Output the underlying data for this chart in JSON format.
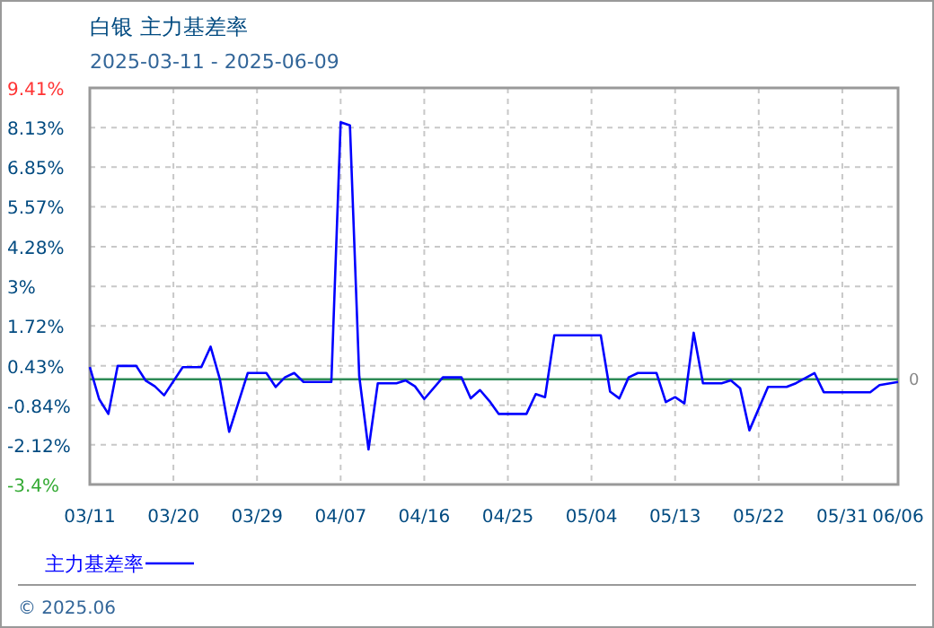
{
  "chart_data": {
    "type": "line",
    "title": "白银 主力基差率",
    "subtitle": "2025-03-11 - 2025-06-09",
    "annotations": [
      "© 2025.06"
    ],
    "x": [
      "2025-03-11",
      "2025-03-12",
      "2025-03-13",
      "2025-03-14",
      "2025-03-16",
      "2025-03-17",
      "2025-03-18",
      "2025-03-19",
      "2025-03-21",
      "2025-03-23",
      "2025-03-24",
      "2025-03-25",
      "2025-03-26",
      "2025-03-28",
      "2025-03-30",
      "2025-03-31",
      "2025-04-01",
      "2025-04-02",
      "2025-04-03",
      "2025-04-06",
      "2025-04-07",
      "2025-04-08",
      "2025-04-09",
      "2025-04-10",
      "2025-04-11",
      "2025-04-13",
      "2025-04-14",
      "2025-04-15",
      "2025-04-16",
      "2025-04-18",
      "2025-04-20",
      "2025-04-21",
      "2025-04-22",
      "2025-04-23",
      "2025-04-24",
      "2025-04-27",
      "2025-04-28",
      "2025-04-29",
      "2025-04-30",
      "2025-05-05",
      "2025-05-06",
      "2025-05-07",
      "2025-05-08",
      "2025-05-09",
      "2025-05-11",
      "2025-05-12",
      "2025-05-13",
      "2025-05-14",
      "2025-05-15",
      "2025-05-16",
      "2025-05-18",
      "2025-05-19",
      "2025-05-20",
      "2025-05-21",
      "2025-05-23",
      "2025-05-25",
      "2025-05-26",
      "2025-05-28",
      "2025-05-29",
      "2025-06-03",
      "2025-06-04",
      "2025-06-06"
    ],
    "series": [
      {
        "name": "主力基差率",
        "color": "#0000ff",
        "values": [
          0.39,
          -0.64,
          -1.12,
          0.43,
          0.43,
          -0.04,
          -0.23,
          -0.52,
          0.39,
          0.39,
          1.05,
          0,
          -1.7,
          0.2,
          0.2,
          -0.25,
          0.06,
          0.2,
          -0.09,
          -0.09,
          8.3,
          8.2,
          0.1,
          -2.27,
          -0.13,
          -0.13,
          -0.04,
          -0.23,
          -0.64,
          0.06,
          0.06,
          -0.62,
          -0.35,
          -0.7,
          -1.12,
          -1.12,
          -0.48,
          -0.58,
          1.42,
          1.42,
          -0.4,
          -0.62,
          0.06,
          0.2,
          0.2,
          -0.74,
          -0.58,
          -0.78,
          1.5,
          -0.13,
          -0.13,
          -0.04,
          -0.29,
          -1.65,
          -0.25,
          -0.25,
          -0.13,
          0.2,
          -0.42,
          -0.42,
          -0.19,
          -0.09
        ]
      }
    ],
    "xlim": [
      "2025-03-11",
      "2025-06-06"
    ],
    "xticks": [
      {
        "value": "2025-03-11",
        "label": "03/11"
      },
      {
        "value": "2025-03-20",
        "label": "03/20"
      },
      {
        "value": "2025-03-29",
        "label": "03/29"
      },
      {
        "value": "2025-04-07",
        "label": "04/07"
      },
      {
        "value": "2025-04-16",
        "label": "04/16"
      },
      {
        "value": "2025-04-25",
        "label": "04/25"
      },
      {
        "value": "2025-05-04",
        "label": "05/04"
      },
      {
        "value": "2025-05-13",
        "label": "05/13"
      },
      {
        "value": "2025-05-22",
        "label": "05/22"
      },
      {
        "value": "2025-05-31",
        "label": "05/31"
      },
      {
        "value": "2025-06-06",
        "label": "06/06"
      }
    ],
    "ylim": [
      -3.4,
      9.41
    ],
    "yticks": [
      {
        "value": -3.4,
        "label": "-3.4%"
      },
      {
        "value": -2.12,
        "label": "-2.12%"
      },
      {
        "value": -0.84,
        "label": "-0.84%"
      },
      {
        "value": 0.43,
        "label": "0.43%"
      },
      {
        "value": 1.72,
        "label": "1.72%"
      },
      {
        "value": 3,
        "label": "3%"
      },
      {
        "value": 4.28,
        "label": "4.28%"
      },
      {
        "value": 5.57,
        "label": "5.57%"
      },
      {
        "value": 6.85,
        "label": "6.85%"
      },
      {
        "value": 8.13,
        "label": "8.13%"
      },
      {
        "value": 9.41,
        "label": "9.41%"
      }
    ],
    "ref_lines": [
      {
        "axis": "y",
        "value": 0,
        "label": "0",
        "color": "#2e8b57"
      }
    ],
    "grid": true,
    "legend": "bottom",
    "marker": "none",
    "line_style": "solid"
  }
}
